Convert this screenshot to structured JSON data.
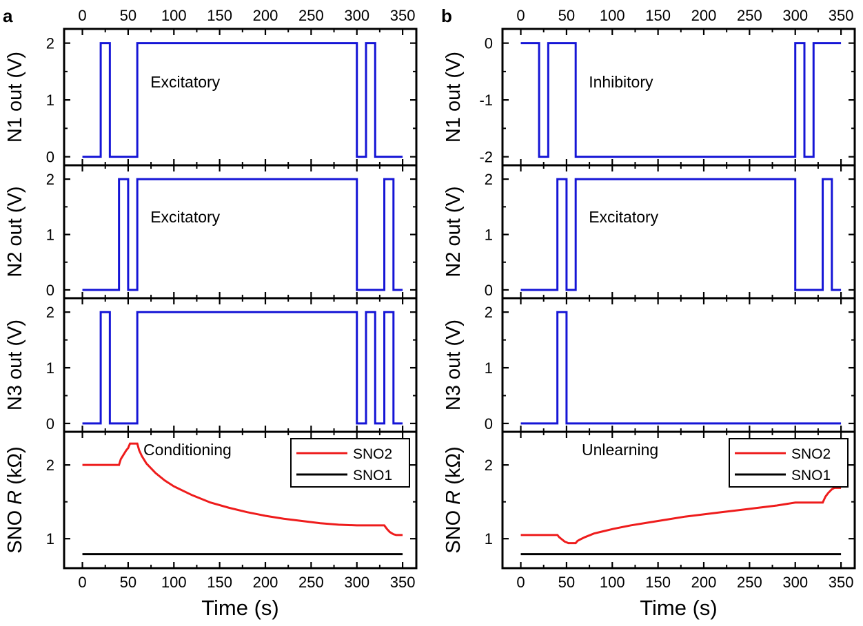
{
  "figure": {
    "panels": [
      {
        "letter": "a",
        "annotation": "Excitatory"
      },
      {
        "letter": "b",
        "annotation": "Inhibitory"
      }
    ]
  },
  "chart_data": [
    {
      "panel": "a",
      "row": 1,
      "type": "line",
      "title": "",
      "xlabel": "",
      "ylabel": "N1 out (V)",
      "xlim": [
        -20,
        365
      ],
      "ylim": [
        -0.15,
        2.25
      ],
      "xticks": [
        0,
        50,
        100,
        150,
        200,
        250,
        300,
        350
      ],
      "yticks": [
        0,
        1,
        2
      ],
      "top_tick_labels": true,
      "bottom_tick_labels": false,
      "annotation": "Excitatory",
      "grid": false,
      "series": [
        {
          "color": "#1515d6",
          "x": [
            0,
            20,
            20,
            30,
            30,
            60,
            60,
            300,
            300,
            310,
            310,
            320,
            320,
            350
          ],
          "y": [
            0,
            0,
            2,
            2,
            0,
            0,
            2,
            2,
            0,
            0,
            2,
            2,
            0,
            0
          ]
        }
      ]
    },
    {
      "panel": "a",
      "row": 2,
      "type": "line",
      "title": "",
      "xlabel": "",
      "ylabel": "N2 out (V)",
      "xlim": [
        -20,
        365
      ],
      "ylim": [
        -0.15,
        2.25
      ],
      "xticks": [
        0,
        50,
        100,
        150,
        200,
        250,
        300,
        350
      ],
      "yticks": [
        0,
        1,
        2
      ],
      "top_tick_labels": false,
      "bottom_tick_labels": false,
      "annotation": "Excitatory",
      "grid": false,
      "series": [
        {
          "color": "#1515d6",
          "x": [
            0,
            40,
            40,
            50,
            50,
            60,
            60,
            300,
            300,
            330,
            330,
            340,
            340,
            350
          ],
          "y": [
            0,
            0,
            2,
            2,
            0,
            0,
            2,
            2,
            0,
            0,
            2,
            2,
            0,
            0
          ]
        }
      ]
    },
    {
      "panel": "a",
      "row": 3,
      "type": "line",
      "title": "",
      "xlabel": "",
      "ylabel": "N3 out (V)",
      "xlim": [
        -20,
        365
      ],
      "ylim": [
        -0.15,
        2.25
      ],
      "xticks": [
        0,
        50,
        100,
        150,
        200,
        250,
        300,
        350
      ],
      "yticks": [
        0,
        1,
        2
      ],
      "top_tick_labels": false,
      "bottom_tick_labels": false,
      "annotation": "",
      "grid": false,
      "series": [
        {
          "color": "#1515d6",
          "x": [
            0,
            20,
            20,
            30,
            30,
            60,
            60,
            300,
            300,
            310,
            310,
            320,
            320,
            330,
            330,
            340,
            340,
            350
          ],
          "y": [
            0,
            0,
            2,
            2,
            0,
            0,
            2,
            2,
            0,
            0,
            2,
            2,
            0,
            0,
            2,
            2,
            0,
            0
          ]
        }
      ]
    },
    {
      "panel": "a",
      "row": 4,
      "type": "line",
      "title": "",
      "xlabel": "Time (s)",
      "ylabel_prefix": "SNO ",
      "ylabel_italic": "R",
      "ylabel_suffix": " (kΩ)",
      "xlim": [
        -20,
        365
      ],
      "ylim": [
        0.6,
        2.45
      ],
      "xticks": [
        0,
        50,
        100,
        150,
        200,
        250,
        300,
        350
      ],
      "yticks": [
        1,
        2
      ],
      "top_tick_labels": false,
      "bottom_tick_labels": true,
      "annotation": "Conditioning",
      "legend": "top-right",
      "grid": false,
      "series": [
        {
          "name": "SNO2",
          "color": "#ee1c1c",
          "x": [
            0,
            40,
            42,
            45,
            48,
            50,
            52,
            60,
            62,
            65,
            70,
            80,
            90,
            100,
            120,
            140,
            160,
            180,
            200,
            220,
            240,
            260,
            280,
            300,
            310,
            320,
            330,
            333,
            336,
            340,
            343,
            350
          ],
          "y": [
            2.0,
            2.0,
            2.08,
            2.14,
            2.2,
            2.23,
            2.29,
            2.29,
            2.2,
            2.12,
            2.02,
            1.89,
            1.79,
            1.71,
            1.59,
            1.49,
            1.42,
            1.36,
            1.31,
            1.27,
            1.24,
            1.21,
            1.19,
            1.18,
            1.18,
            1.18,
            1.18,
            1.13,
            1.09,
            1.06,
            1.05,
            1.05
          ]
        },
        {
          "name": "SNO1",
          "color": "#000000",
          "x": [
            0,
            350
          ],
          "y": [
            0.79,
            0.79
          ]
        }
      ]
    },
    {
      "panel": "b",
      "row": 1,
      "type": "line",
      "title": "",
      "xlabel": "",
      "ylabel": "N1 out (V)",
      "xlim": [
        -20,
        365
      ],
      "ylim": [
        -2.15,
        0.25
      ],
      "xticks": [
        0,
        50,
        100,
        150,
        200,
        250,
        300,
        350
      ],
      "yticks": [
        0,
        -1,
        -2
      ],
      "top_tick_labels": true,
      "bottom_tick_labels": false,
      "annotation": "Inhibitory",
      "grid": false,
      "series": [
        {
          "color": "#1515d6",
          "x": [
            0,
            20,
            20,
            30,
            30,
            60,
            60,
            300,
            300,
            310,
            310,
            320,
            320,
            350
          ],
          "y": [
            0,
            0,
            -2,
            -2,
            0,
            0,
            -2,
            -2,
            0,
            0,
            -2,
            -2,
            0,
            0
          ]
        }
      ]
    },
    {
      "panel": "b",
      "row": 2,
      "type": "line",
      "title": "",
      "xlabel": "",
      "ylabel": "N2 out (V)",
      "xlim": [
        -20,
        365
      ],
      "ylim": [
        -0.15,
        2.25
      ],
      "xticks": [
        0,
        50,
        100,
        150,
        200,
        250,
        300,
        350
      ],
      "yticks": [
        0,
        1,
        2
      ],
      "top_tick_labels": false,
      "bottom_tick_labels": false,
      "annotation": "Excitatory",
      "grid": false,
      "series": [
        {
          "color": "#1515d6",
          "x": [
            0,
            40,
            40,
            50,
            50,
            60,
            60,
            300,
            300,
            330,
            330,
            340,
            340,
            350
          ],
          "y": [
            0,
            0,
            2,
            2,
            0,
            0,
            2,
            2,
            0,
            0,
            2,
            2,
            0,
            0
          ]
        }
      ]
    },
    {
      "panel": "b",
      "row": 3,
      "type": "line",
      "title": "",
      "xlabel": "",
      "ylabel": "N3 out (V)",
      "xlim": [
        -20,
        365
      ],
      "ylim": [
        -0.15,
        2.25
      ],
      "xticks": [
        0,
        50,
        100,
        150,
        200,
        250,
        300,
        350
      ],
      "yticks": [
        0,
        1,
        2
      ],
      "top_tick_labels": false,
      "bottom_tick_labels": false,
      "annotation": "",
      "grid": false,
      "series": [
        {
          "color": "#1515d6",
          "x": [
            0,
            40,
            40,
            50,
            50,
            350
          ],
          "y": [
            0,
            0,
            2,
            2,
            0,
            0
          ]
        }
      ]
    },
    {
      "panel": "b",
      "row": 4,
      "type": "line",
      "title": "",
      "xlabel": "Time (s)",
      "ylabel_prefix": "SNO ",
      "ylabel_italic": "R",
      "ylabel_suffix": " (kΩ)",
      "xlim": [
        -20,
        365
      ],
      "ylim": [
        0.6,
        2.45
      ],
      "xticks": [
        0,
        50,
        100,
        150,
        200,
        250,
        300,
        350
      ],
      "yticks": [
        1,
        2
      ],
      "top_tick_labels": false,
      "bottom_tick_labels": true,
      "annotation": "Unlearning",
      "legend": "top-right",
      "grid": false,
      "series": [
        {
          "name": "SNO2",
          "color": "#ee1c1c",
          "x": [
            0,
            40,
            42,
            45,
            48,
            50,
            52,
            55,
            58,
            60,
            62,
            65,
            70,
            80,
            90,
            100,
            120,
            140,
            160,
            180,
            200,
            220,
            240,
            260,
            280,
            300,
            310,
            320,
            330,
            333,
            336,
            340,
            343,
            350
          ],
          "y": [
            1.05,
            1.05,
            1.02,
            0.99,
            0.96,
            0.95,
            0.94,
            0.94,
            0.94,
            0.94,
            0.97,
            0.99,
            1.02,
            1.07,
            1.1,
            1.13,
            1.18,
            1.22,
            1.26,
            1.3,
            1.33,
            1.36,
            1.39,
            1.42,
            1.45,
            1.49,
            1.49,
            1.49,
            1.49,
            1.57,
            1.62,
            1.67,
            1.69,
            1.69
          ]
        },
        {
          "name": "SNO1",
          "color": "#000000",
          "x": [
            0,
            350
          ],
          "y": [
            0.79,
            0.79
          ]
        }
      ]
    }
  ]
}
